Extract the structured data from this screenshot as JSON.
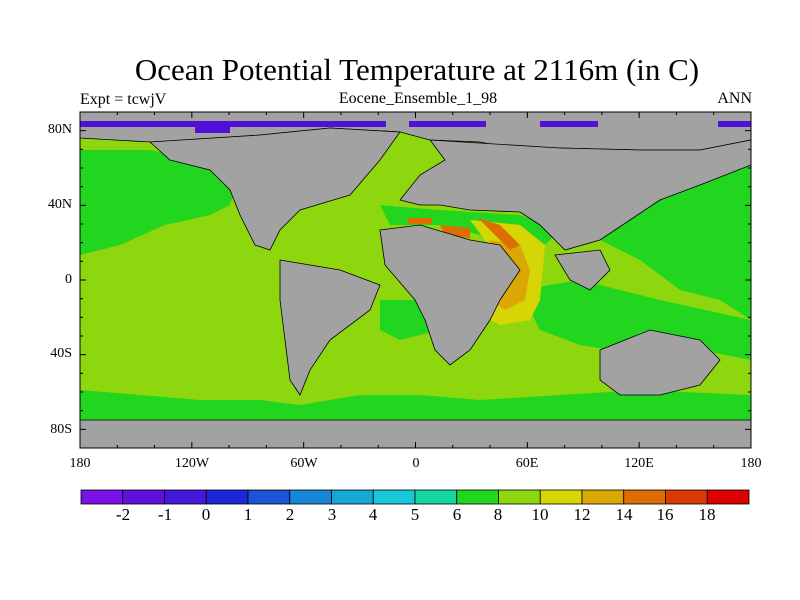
{
  "header": {
    "title": "Ocean Potential Temperature at 2116m (in C)",
    "left": "Expt = tcwjV",
    "center": "Eocene_Ensemble_1_98",
    "right": "ANN"
  },
  "axes": {
    "lat_labels": [
      "80N",
      "40N",
      "0",
      "40S",
      "80S"
    ],
    "lon_labels": [
      "180",
      "120W",
      "60W",
      "0",
      "60E",
      "120E",
      "180"
    ]
  },
  "colorbar": {
    "labels": [
      "-2",
      "-1",
      "0",
      "1",
      "2",
      "3",
      "4",
      "5",
      "6",
      "8",
      "10",
      "12",
      "14",
      "16",
      "18"
    ],
    "colors": [
      "#7a11e6",
      "#5f10dd",
      "#4418d8",
      "#1c26d8",
      "#1b55d6",
      "#1885d6",
      "#18a8d6",
      "#19c8d8",
      "#16d6a0",
      "#22d61f",
      "#8ed70f",
      "#d6d607",
      "#dba705",
      "#dd6e04",
      "#dc3a03",
      "#dd0000"
    ]
  },
  "map_colors": {
    "land": "#a2a2a2",
    "deep_green": "#22d61f",
    "light_green": "#8ed70f",
    "yellow": "#d6d607",
    "orange": "#dba705",
    "red_orange": "#dd6e04",
    "purple": "#5010d8"
  }
}
